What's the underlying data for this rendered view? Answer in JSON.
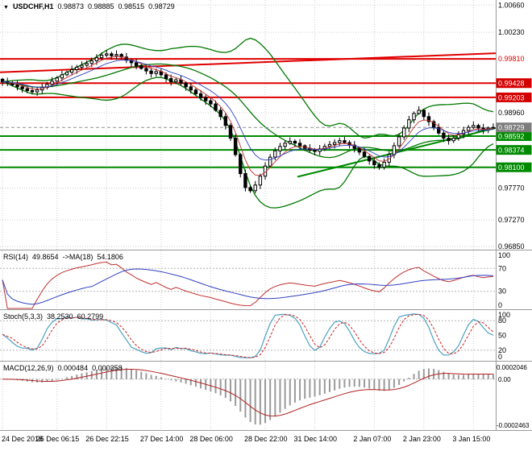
{
  "colors": {
    "bull": "#ffffff",
    "bear": "#000000",
    "candle_outline": "#000000",
    "bollinger": "#007800",
    "ma_fast": "#c03030",
    "ma_slow": "#3040c0",
    "resistance": "#e00000",
    "support": "#008a00",
    "grid": "#cdcdcd",
    "separator": "#9a9a9a",
    "level_line": "#b4b4b4",
    "rsi": "#c03030",
    "rsi_ma": "#3040c0",
    "stoch_k": "#4aa2c0",
    "stoch_d": "#cc2020",
    "macd_hist": "#9a9a9a",
    "macd_signal": "#b02020",
    "badge_red": "#d40000",
    "badge_green": "#008a00",
    "badge_current": "#7d7d7d",
    "current_price_line": "#909090",
    "axis_text": "#000000"
  },
  "price_panel": {
    "collapse_icon": "▼",
    "symbol": "USDCHF,H1",
    "open": "0.98873",
    "high": "0.98885",
    "low": "0.98515",
    "close": "0.98729"
  },
  "rsi_panel": {
    "name": "RSI(14)",
    "value": "49.8654",
    "ma_name": "->MA(18)",
    "ma_value": "54.1806",
    "axis_labels": [
      "100",
      "70",
      "30",
      "0"
    ],
    "axis_values": [
      100,
      70,
      30,
      0
    ],
    "levels": [
      70,
      30
    ],
    "range": [
      0,
      100
    ]
  },
  "stoch_panel": {
    "name": "Stoch(5,3,3)",
    "k_value": "38.2530",
    "d_value": "60.2799",
    "axis_labels": [
      "100",
      "80",
      "50",
      "20",
      "0"
    ],
    "axis_values": [
      100,
      80,
      50,
      20,
      0
    ],
    "levels": [
      80,
      20
    ],
    "range": [
      0,
      100
    ]
  },
  "macd_panel": {
    "name": "MACD(12,26,9)",
    "value": "0.000484",
    "signal_value": "0.000358",
    "axis_top": "0.0002046",
    "axis_zero": "0.00",
    "axis_bottom": "-0.0002463"
  },
  "time_axis": {
    "labels": [
      "24 Dec 2018",
      "26 Dec 06:15",
      "26 Dec 22:15",
      "27 Dec 14:00",
      "28 Dec 06:00",
      "28 Dec 22:00",
      "31 Dec 14:00",
      "2 Jan 07:00",
      "2 Jan 23:00",
      "3 Jan 15:00"
    ]
  },
  "chart_data": {
    "type": "candlestick",
    "title": "USDCHF,H1",
    "symbol": "USDCHF",
    "timeframe": "H1",
    "ylim": [
      0.968,
      1.0074
    ],
    "x_labels": [
      "24 Dec 2018",
      "26 Dec 06:15",
      "26 Dec 22:15",
      "27 Dec 14:00",
      "28 Dec 06:00",
      "28 Dec 22:00",
      "31 Dec 14:00",
      "2 Jan 07:00",
      "2 Jan 23:00",
      "3 Jan 15:00"
    ],
    "y_ticks": [
      {
        "price": 1.0066,
        "text": "1.00660",
        "style": "plain"
      },
      {
        "price": 1.0023,
        "text": "1.00230",
        "style": "plain"
      },
      {
        "price": 0.9981,
        "text": "0.99810",
        "style": "red"
      },
      {
        "price": 0.9896,
        "text": "0.98960",
        "style": "plain"
      },
      {
        "price": 0.9777,
        "text": "0.97770",
        "style": "plain"
      },
      {
        "price": 0.9727,
        "text": "0.97270",
        "style": "plain"
      },
      {
        "price": 0.9685,
        "text": "0.96850",
        "style": "plain"
      }
    ],
    "closes": [
      0.9945,
      0.9943,
      0.994,
      0.9937,
      0.9934,
      0.9931,
      0.9929,
      0.9932,
      0.9936,
      0.9941,
      0.9946,
      0.9951,
      0.9956,
      0.996,
      0.9964,
      0.9968,
      0.9971,
      0.9974,
      0.9978,
      0.9983,
      0.9987,
      0.9989,
      0.9986,
      0.9988,
      0.9984,
      0.9979,
      0.9975,
      0.997,
      0.9966,
      0.9962,
      0.9958,
      0.9961,
      0.9956,
      0.995,
      0.9945,
      0.9948,
      0.9943,
      0.9937,
      0.9932,
      0.9926,
      0.992,
      0.9915,
      0.991,
      0.99,
      0.989,
      0.9876,
      0.9856,
      0.983,
      0.98,
      0.9778,
      0.9773,
      0.9782,
      0.9796,
      0.9812,
      0.9826,
      0.9836,
      0.9843,
      0.9848,
      0.9851,
      0.9848,
      0.9844,
      0.984,
      0.9837,
      0.9835,
      0.9839,
      0.9843,
      0.9846,
      0.9849,
      0.9852,
      0.9849,
      0.9845,
      0.984,
      0.9834,
      0.9827,
      0.982,
      0.9814,
      0.981,
      0.9818,
      0.983,
      0.9844,
      0.9858,
      0.9872,
      0.9885,
      0.9895,
      0.99,
      0.989,
      0.9882,
      0.9873,
      0.9864,
      0.9856,
      0.9852,
      0.9856,
      0.9862,
      0.9868,
      0.9873,
      0.9876,
      0.9872,
      0.9869,
      0.9872,
      0.98729
    ],
    "last_candle": {
      "open": 0.98873,
      "high": 0.98885,
      "low": 0.98515,
      "close": 0.98729
    },
    "current_price": 0.98729,
    "indicators": {
      "bollinger_period": 20,
      "bollinger_dev": 2,
      "ma_fast_period": 5,
      "ma_slow_period": 10,
      "rsi_period": 14,
      "rsi_ma_period": 18,
      "stoch": [
        5,
        3,
        3
      ],
      "macd": [
        12,
        26,
        9
      ]
    },
    "horizontal_lines": [
      {
        "price": 0.9981,
        "kind": "resistance",
        "badge": false,
        "label": "0.99810"
      },
      {
        "price": 0.99428,
        "kind": "resistance",
        "badge": true,
        "label": "0.99428"
      },
      {
        "price": 0.99203,
        "kind": "resistance",
        "badge": true,
        "label": "0.99203"
      },
      {
        "price": 0.98592,
        "kind": "support",
        "badge": true,
        "label": "0.98592"
      },
      {
        "price": 0.98374,
        "kind": "support",
        "badge": true,
        "label": "0.98374"
      },
      {
        "price": 0.981,
        "kind": "support",
        "badge": true,
        "label": "0.98100"
      }
    ],
    "trend_lines": [
      {
        "xf1": 0.0,
        "price1": 0.996,
        "xf2": 1.0,
        "price2": 0.999,
        "kind": "resistance"
      },
      {
        "xf1": 0.6,
        "price1": 0.9795,
        "xf2": 1.0,
        "price2": 0.9872,
        "kind": "support"
      }
    ]
  }
}
